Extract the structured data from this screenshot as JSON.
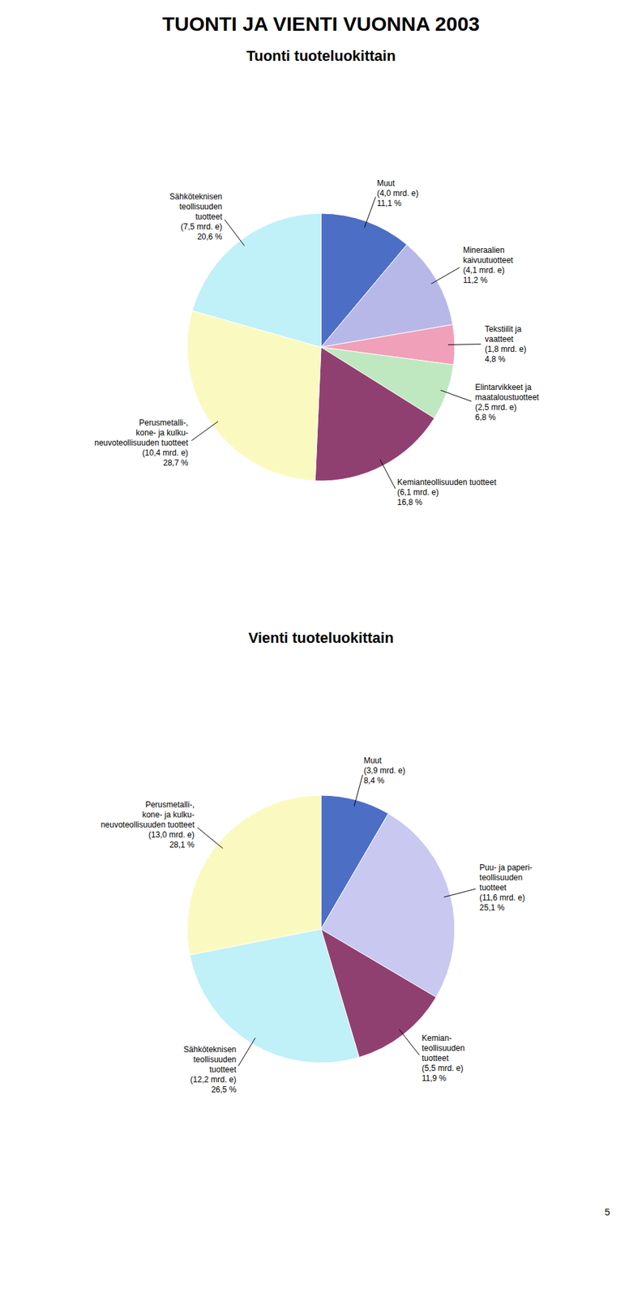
{
  "title": "TUONTI JA VIENTI VUONNA 2003",
  "annotations": [
    "5"
  ],
  "chart_data": [
    {
      "type": "pie",
      "title": "Tuonti tuoteluokittain",
      "categories": [
        "Muut",
        "Mineraalien\nkaivuutuotteet",
        "Tekstiilit ja\nvaatteet",
        "Elintarvikkeet ja\nmaataloustuotteet",
        "Kemianteollisuuden tuotteet",
        "Perusmetalli-,\nkone- ja kulku-\nneuvoteollisuuden tuotteet",
        "Sähköteknisen\nteollisuuden\ntuotteet"
      ],
      "values": [
        11.1,
        11.2,
        4.8,
        6.8,
        16.8,
        28.7,
        20.6
      ],
      "value_labels": [
        "11,1 %",
        "11,2 %",
        "4,8 %",
        "6,8 %",
        "16,8 %",
        "28,7 %",
        "20,6 %"
      ],
      "amounts": [
        4.0,
        4.1,
        1.8,
        2.5,
        6.1,
        10.4,
        7.5
      ],
      "amount_labels": [
        "(4,0 mrd. e)",
        "(4,1 mrd. e)",
        "(1,8 mrd. e)",
        "(2,5 mrd. e)",
        "(6,1 mrd. e)",
        "(10,4 mrd. e)",
        "(7,5 mrd. e)"
      ],
      "colors": [
        "#4d6ec5",
        "#b8b8e8",
        "#f0a0b8",
        "#c0e8c0",
        "#904070",
        "#fafac0",
        "#c0f0f8"
      ],
      "data_labels": true
    },
    {
      "type": "pie",
      "title": "Vienti tuoteluokittain",
      "categories": [
        "Muut",
        "Puu- ja paperi-\nteollisuuden\ntuotteet",
        "Kemian-\nteollisuuden\ntuotteet",
        "Sähköteknisen\nteollisuuden\ntuotteet",
        "Perusmetalli-,\nkone- ja kulku-\nneuvoteollisuuden tuotteet"
      ],
      "values": [
        8.4,
        25.1,
        11.9,
        26.5,
        28.1
      ],
      "value_labels": [
        "8,4 %",
        "25,1 %",
        "11,9 %",
        "26,5 %",
        "28,1 %"
      ],
      "amounts": [
        3.9,
        11.6,
        5.5,
        12.2,
        13.0
      ],
      "amount_labels": [
        "(3,9 mrd. e)",
        "(11,6 mrd. e)",
        "(5,5 mrd. e)",
        "(12,2 mrd. e)",
        "(13,0 mrd. e)"
      ],
      "colors": [
        "#4d6ec5",
        "#c8c8f0",
        "#904070",
        "#c0f0f8",
        "#fafac0"
      ],
      "data_labels": true
    }
  ]
}
